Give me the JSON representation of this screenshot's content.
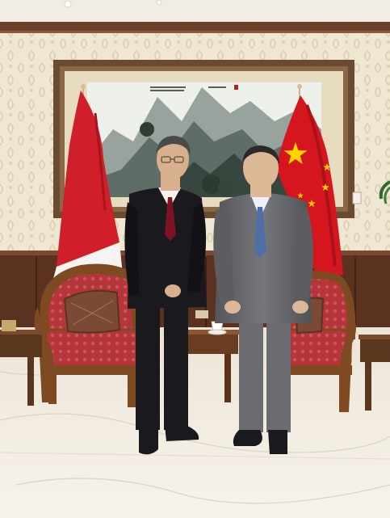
{
  "scene": {
    "colors": {
      "ceiling": "#f1ede4",
      "crown_molding": "#6a4128",
      "wallpaper": "#efe7d2",
      "wallpaper_pattern": "#ddd0b1",
      "wood_paneling": "#5b3220",
      "floor_marble": "#f3eee6",
      "painting_frame": "#6b4a32",
      "painting_mat": "#e7dcbf",
      "indonesia_red": "#d01f2b",
      "china_red": "#d5161e",
      "china_star": "#ffd400",
      "sofa_red": "#b4353a",
      "sofa_wood": "#7e4a22",
      "black_suit": "#1a1a1e",
      "gray_suit": "#6a6c70",
      "red_tie": "#7a1422",
      "blue_tie": "#4d6fa6"
    },
    "icons": [
      "indonesia-flag-icon",
      "china-flag-icon"
    ]
  }
}
